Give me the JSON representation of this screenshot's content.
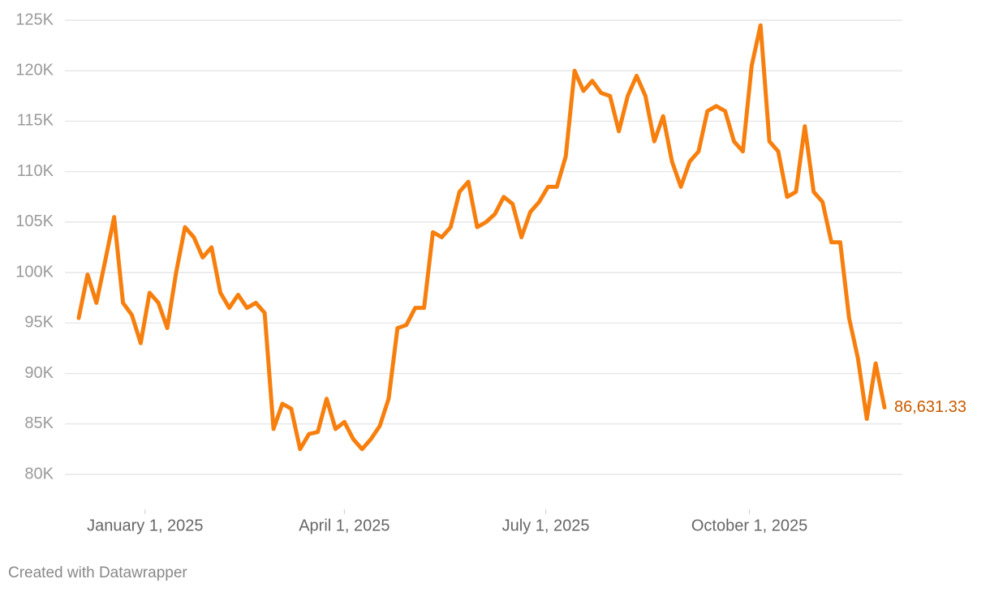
{
  "chart_data": {
    "type": "line",
    "x": [
      "2024-12-02",
      "2024-12-06",
      "2024-12-10",
      "2024-12-14",
      "2024-12-18",
      "2024-12-22",
      "2024-12-26",
      "2024-12-30",
      "2025-01-03",
      "2025-01-07",
      "2025-01-11",
      "2025-01-15",
      "2025-01-19",
      "2025-01-23",
      "2025-01-27",
      "2025-01-31",
      "2025-02-04",
      "2025-02-08",
      "2025-02-12",
      "2025-02-16",
      "2025-02-20",
      "2025-02-24",
      "2025-02-28",
      "2025-03-04",
      "2025-03-08",
      "2025-03-12",
      "2025-03-16",
      "2025-03-20",
      "2025-03-24",
      "2025-03-28",
      "2025-04-01",
      "2025-04-05",
      "2025-04-09",
      "2025-04-13",
      "2025-04-17",
      "2025-04-21",
      "2025-04-25",
      "2025-04-29",
      "2025-05-03",
      "2025-05-07",
      "2025-05-11",
      "2025-05-15",
      "2025-05-19",
      "2025-05-23",
      "2025-05-27",
      "2025-05-31",
      "2025-06-04",
      "2025-06-08",
      "2025-06-12",
      "2025-06-16",
      "2025-06-20",
      "2025-06-24",
      "2025-06-28",
      "2025-07-02",
      "2025-07-06",
      "2025-07-10",
      "2025-07-14",
      "2025-07-18",
      "2025-07-22",
      "2025-07-26",
      "2025-07-30",
      "2025-08-03",
      "2025-08-07",
      "2025-08-11",
      "2025-08-15",
      "2025-08-19",
      "2025-08-23",
      "2025-08-27",
      "2025-08-31",
      "2025-09-04",
      "2025-09-08",
      "2025-09-12",
      "2025-09-16",
      "2025-09-20",
      "2025-09-24",
      "2025-09-28",
      "2025-10-02",
      "2025-10-06",
      "2025-10-10",
      "2025-10-14",
      "2025-10-18",
      "2025-10-22",
      "2025-10-26",
      "2025-10-30",
      "2025-11-03",
      "2025-11-07",
      "2025-11-11",
      "2025-11-15",
      "2025-11-19",
      "2025-11-23",
      "2025-11-27",
      "2025-12-01"
    ],
    "series": [
      {
        "color": "#f77f0e",
        "values": [
          95500,
          99800,
          97000,
          101200,
          105500,
          97000,
          95800,
          93000,
          98000,
          97000,
          94500,
          100000,
          104500,
          103500,
          101500,
          102500,
          98000,
          96500,
          97800,
          96500,
          97000,
          96000,
          84500,
          87000,
          86500,
          82500,
          84000,
          84200,
          87500,
          84500,
          85200,
          83500,
          82500,
          83500,
          84800,
          87500,
          94500,
          94800,
          96500,
          96500,
          104000,
          103500,
          104500,
          108000,
          109000,
          104500,
          105000,
          105800,
          107500,
          106800,
          103500,
          106000,
          107000,
          108500,
          108500,
          111500,
          120000,
          118000,
          119000,
          117800,
          117500,
          114000,
          117500,
          119500,
          117500,
          113000,
          115500,
          111000,
          108500,
          111000,
          112000,
          116000,
          116500,
          116000,
          113000,
          112000,
          120500,
          124500,
          113000,
          112000,
          107500,
          108000,
          114500,
          108000,
          107000,
          103000,
          103000,
          95500,
          91500,
          85500,
          91000,
          86631.33
        ],
        "value_labels": [
          null,
          null,
          null,
          null,
          null,
          null,
          null,
          null,
          null,
          null,
          null,
          null,
          null,
          null,
          null,
          null,
          null,
          null,
          null,
          null,
          null,
          null,
          null,
          null,
          null,
          null,
          null,
          null,
          null,
          null,
          null,
          null,
          null,
          null,
          null,
          null,
          null,
          null,
          null,
          null,
          null,
          null,
          null,
          null,
          null,
          null,
          null,
          null,
          null,
          null,
          null,
          null,
          null,
          null,
          null,
          null,
          null,
          null,
          null,
          null,
          null,
          null,
          null,
          null,
          null,
          null,
          null,
          null,
          null,
          null,
          null,
          null,
          null,
          null,
          null,
          null,
          null,
          null,
          null,
          null,
          null,
          null,
          null,
          null,
          null,
          null,
          null,
          null,
          null,
          null,
          null,
          "86,631.33"
        ]
      }
    ],
    "xlim": [
      "2024-12-02",
      "2025-12-01"
    ],
    "xticks": [
      {
        "value": "2025-01-01",
        "label": "January 1, 2025"
      },
      {
        "value": "2025-04-01",
        "label": "April 1, 2025"
      },
      {
        "value": "2025-07-01",
        "label": "July 1, 2025"
      },
      {
        "value": "2025-10-01",
        "label": "October 1, 2025"
      }
    ],
    "ylim": [
      77000,
      125000
    ],
    "yticks": [
      {
        "value": 80000,
        "label": "80K"
      },
      {
        "value": 85000,
        "label": "85K"
      },
      {
        "value": 90000,
        "label": "90K"
      },
      {
        "value": 95000,
        "label": "95K"
      },
      {
        "value": 100000,
        "label": "100K"
      },
      {
        "value": 105000,
        "label": "105K"
      },
      {
        "value": 110000,
        "label": "110K"
      },
      {
        "value": 115000,
        "label": "115K"
      },
      {
        "value": 120000,
        "label": "120K"
      },
      {
        "value": 125000,
        "label": "125K"
      }
    ],
    "grid": true,
    "label_color": "#c95a00",
    "footer": "Created with Datawrapper"
  }
}
